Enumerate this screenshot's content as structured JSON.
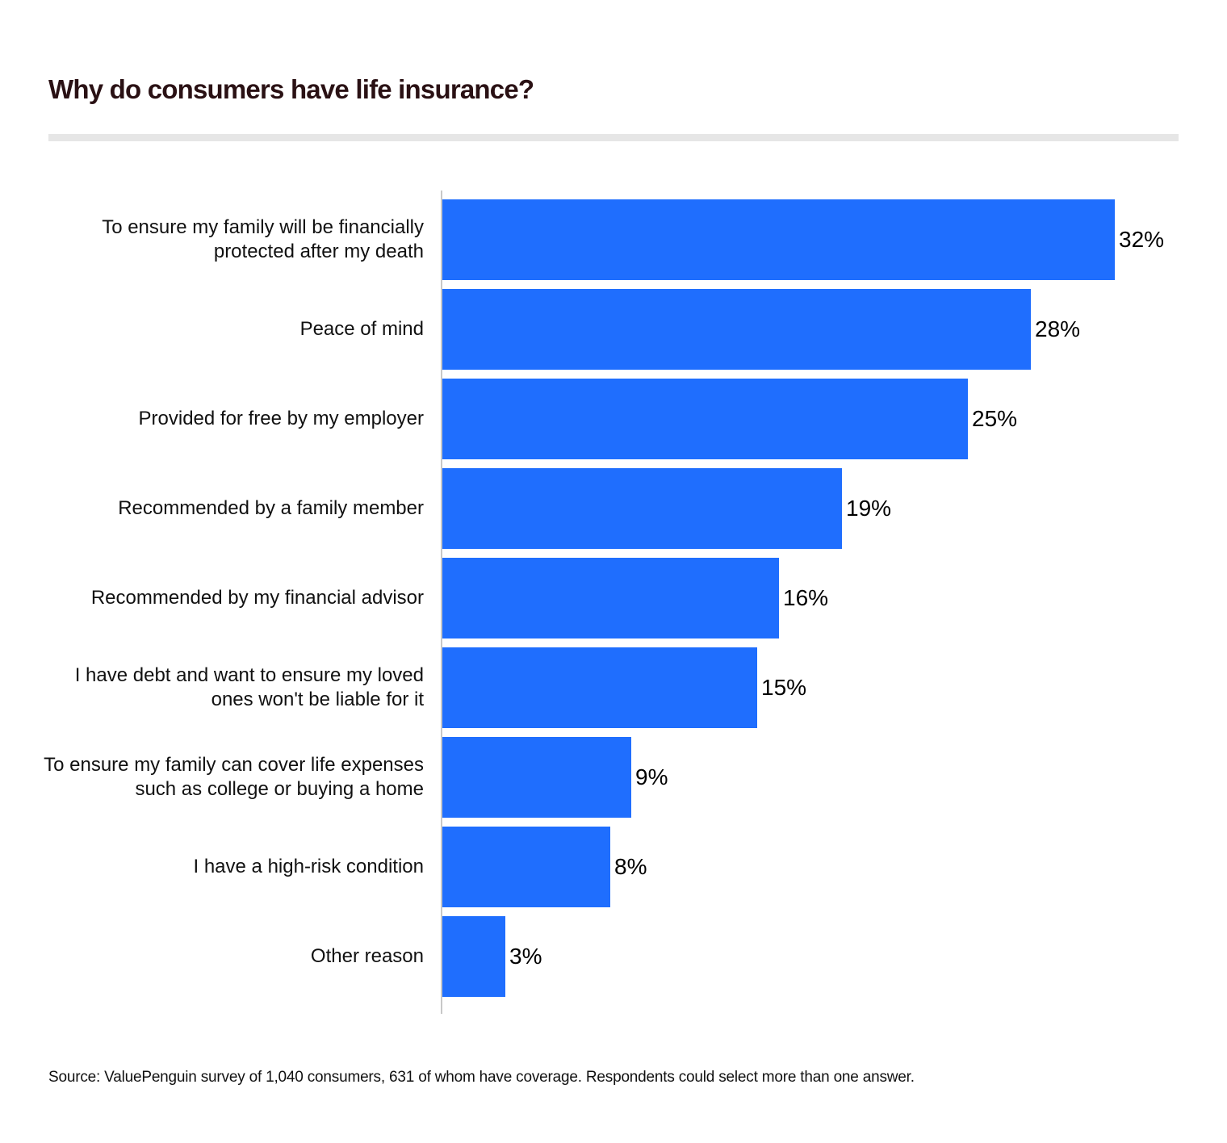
{
  "header": {
    "title": "Why do consumers have life insurance?"
  },
  "footer": {
    "source": "Source: ValuePenguin survey of 1,040 consumers, 631 of whom have coverage. Respondents could select more than one answer."
  },
  "colors": {
    "bar": "#1f6efe",
    "title": "#2a1114",
    "rule": "#e6e6e6"
  },
  "chart_data": {
    "type": "bar",
    "orientation": "horizontal",
    "title": "Why do consumers have life insurance?",
    "xlabel": "",
    "ylabel": "",
    "xlim": [
      0,
      32
    ],
    "grid": false,
    "legend": null,
    "categories": [
      "To ensure my family will be financially protected after my death",
      "Peace of mind",
      "Provided for free by my employer",
      "Recommended by a family member",
      "Recommended by my financial advisor",
      "I have debt and want to ensure my loved ones won't be liable for it",
      "To ensure my family can cover life expenses such as college or buying a home",
      "I have a high-risk condition",
      "Other reason"
    ],
    "values": [
      32,
      28,
      25,
      19,
      16,
      15,
      9,
      8,
      3
    ],
    "value_labels": [
      "32%",
      "28%",
      "25%",
      "19%",
      "16%",
      "15%",
      "9%",
      "8%",
      "3%"
    ],
    "unit": "%",
    "annotation": "Source: ValuePenguin survey of 1,040 consumers, 631 of whom have coverage. Respondents could select more than one answer."
  }
}
